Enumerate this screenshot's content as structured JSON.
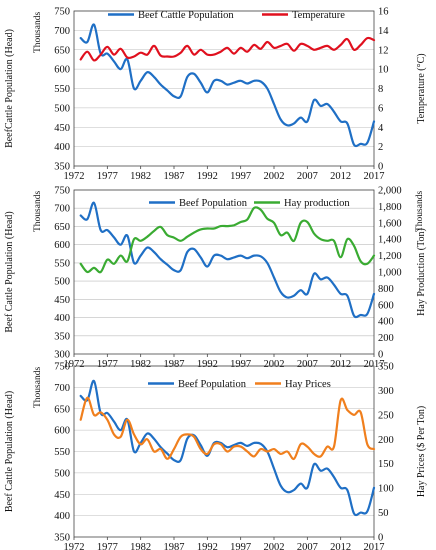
{
  "chart_data": [
    {
      "type": "line",
      "left_unit": "Thousands",
      "ylabel": "BeefCattle Population (Head)",
      "y2label": "Temperature (°C)",
      "xlim": [
        1972,
        2017
      ],
      "xticks": [
        1972,
        1977,
        1982,
        1987,
        1992,
        1997,
        2002,
        2007,
        2012,
        2017
      ],
      "ylim": [
        350,
        750
      ],
      "yticks": [
        350,
        400,
        450,
        500,
        550,
        600,
        650,
        700,
        750
      ],
      "y2lim": [
        0,
        16
      ],
      "y2ticks": [
        0,
        2,
        4,
        6,
        8,
        10,
        12,
        14,
        16
      ],
      "grid": true,
      "legend_position": "top-center",
      "series": [
        {
          "name": "Beef Cattle Population",
          "axis": "left",
          "color": "#1f6fc5",
          "x": [
            1973,
            1974,
            1975,
            1976,
            1977,
            1978,
            1979,
            1980,
            1981,
            1982,
            1983,
            1984,
            1985,
            1986,
            1987,
            1988,
            1989,
            1990,
            1991,
            1992,
            1993,
            1994,
            1995,
            1996,
            1997,
            1998,
            1999,
            2000,
            2001,
            2002,
            2003,
            2004,
            2005,
            2006,
            2007,
            2008,
            2009,
            2010,
            2011,
            2012,
            2013,
            2014,
            2015,
            2016,
            2017
          ],
          "values": [
            680,
            670,
            715,
            640,
            640,
            620,
            600,
            625,
            550,
            570,
            592,
            580,
            560,
            545,
            530,
            530,
            580,
            588,
            565,
            540,
            570,
            570,
            560,
            565,
            570,
            563,
            570,
            568,
            550,
            510,
            470,
            455,
            460,
            475,
            465,
            520,
            505,
            510,
            490,
            465,
            460,
            405,
            407,
            410,
            465
          ]
        },
        {
          "name": "Temperature",
          "axis": "right",
          "color": "#e0101e",
          "x": [
            1973,
            1974,
            1975,
            1976,
            1977,
            1978,
            1979,
            1980,
            1981,
            1982,
            1983,
            1984,
            1985,
            1986,
            1987,
            1988,
            1989,
            1990,
            1991,
            1992,
            1993,
            1994,
            1995,
            1996,
            1997,
            1998,
            1999,
            2000,
            2001,
            2002,
            2003,
            2004,
            2005,
            2006,
            2007,
            2008,
            2009,
            2010,
            2011,
            2012,
            2013,
            2014,
            2015,
            2016,
            2017
          ],
          "values": [
            11.0,
            11.8,
            10.9,
            11.5,
            12.3,
            11.5,
            12.1,
            11.2,
            11.3,
            11.7,
            11.5,
            12.4,
            11.4,
            11.3,
            11.3,
            11.7,
            12.4,
            11.5,
            12.0,
            11.5,
            11.5,
            11.8,
            12.2,
            11.6,
            12.2,
            11.8,
            12.5,
            12.1,
            12.8,
            12.2,
            12.4,
            12.6,
            11.9,
            12.6,
            12.4,
            12.0,
            12.2,
            12.4,
            12.0,
            12.5,
            13.1,
            12.0,
            12.5,
            13.2,
            13.0
          ]
        }
      ]
    },
    {
      "type": "line",
      "left_unit": "Thousands",
      "right_unit": "Thousands",
      "ylabel": "Beef Cattle Population (Head)",
      "y2label": "Hay Production (Ton)",
      "xlim": [
        1972,
        2017
      ],
      "xticks": [
        1972,
        1977,
        1982,
        1987,
        1992,
        1997,
        2002,
        2007,
        2012,
        2017
      ],
      "ylim": [
        300,
        750
      ],
      "yticks": [
        300,
        350,
        400,
        450,
        500,
        550,
        600,
        650,
        700,
        750
      ],
      "y2lim": [
        0,
        2000
      ],
      "y2ticks": [
        0,
        200,
        400,
        600,
        800,
        1000,
        1200,
        1400,
        1600,
        1800,
        2000
      ],
      "y2tick_labels": [
        "0",
        "200",
        "400",
        "600",
        "800",
        "1,000",
        "1,200",
        "1,400",
        "1,600",
        "1,800",
        "2,000"
      ],
      "grid": true,
      "legend_position": "top-center",
      "series": [
        {
          "name": "Beef Population",
          "axis": "left",
          "color": "#1f6fc5",
          "x": [
            1973,
            1974,
            1975,
            1976,
            1977,
            1978,
            1979,
            1980,
            1981,
            1982,
            1983,
            1984,
            1985,
            1986,
            1987,
            1988,
            1989,
            1990,
            1991,
            1992,
            1993,
            1994,
            1995,
            1996,
            1997,
            1998,
            1999,
            2000,
            2001,
            2002,
            2003,
            2004,
            2005,
            2006,
            2007,
            2008,
            2009,
            2010,
            2011,
            2012,
            2013,
            2014,
            2015,
            2016,
            2017
          ],
          "values": [
            680,
            670,
            715,
            640,
            640,
            620,
            600,
            625,
            550,
            570,
            592,
            580,
            560,
            545,
            530,
            530,
            580,
            588,
            565,
            540,
            570,
            570,
            560,
            565,
            570,
            563,
            570,
            568,
            550,
            510,
            470,
            455,
            460,
            475,
            465,
            520,
            505,
            510,
            490,
            465,
            460,
            405,
            407,
            410,
            465
          ]
        },
        {
          "name": "Hay production",
          "axis": "right",
          "color": "#3aab32",
          "x": [
            1973,
            1974,
            1975,
            1976,
            1977,
            1978,
            1979,
            1980,
            1981,
            1982,
            1983,
            1984,
            1985,
            1986,
            1987,
            1988,
            1989,
            1990,
            1991,
            1992,
            1993,
            1994,
            1995,
            1996,
            1997,
            1998,
            1999,
            2000,
            2001,
            2002,
            2003,
            2004,
            2005,
            2006,
            2007,
            2008,
            2009,
            2010,
            2011,
            2012,
            2013,
            2014,
            2015,
            2016,
            2017
          ],
          "values": [
            1100,
            1000,
            1050,
            1000,
            1150,
            1100,
            1200,
            1130,
            1400,
            1380,
            1430,
            1500,
            1550,
            1450,
            1420,
            1380,
            1430,
            1480,
            1520,
            1530,
            1530,
            1560,
            1560,
            1570,
            1610,
            1640,
            1780,
            1760,
            1650,
            1600,
            1450,
            1480,
            1380,
            1600,
            1610,
            1470,
            1400,
            1380,
            1380,
            1180,
            1400,
            1320,
            1130,
            1100,
            1200
          ]
        }
      ]
    },
    {
      "type": "line",
      "left_unit": "Thousands",
      "ylabel": "Beef Cattle Population (Head)",
      "y2label": "Hay Prices ($ Per Ton)",
      "xlim": [
        1972,
        2017
      ],
      "xticks": [
        1972,
        1977,
        1982,
        1987,
        1992,
        1997,
        2002,
        2007,
        2012,
        2017
      ],
      "ylim": [
        350,
        750
      ],
      "yticks": [
        350,
        400,
        450,
        500,
        550,
        600,
        650,
        700,
        750
      ],
      "y2lim": [
        0,
        350
      ],
      "y2ticks": [
        0,
        50,
        100,
        150,
        200,
        250,
        300,
        350
      ],
      "grid": true,
      "legend_position": "top-center",
      "series": [
        {
          "name": "Beef Population",
          "axis": "left",
          "color": "#1f6fc5",
          "x": [
            1973,
            1974,
            1975,
            1976,
            1977,
            1978,
            1979,
            1980,
            1981,
            1982,
            1983,
            1984,
            1985,
            1986,
            1987,
            1988,
            1989,
            1990,
            1991,
            1992,
            1993,
            1994,
            1995,
            1996,
            1997,
            1998,
            1999,
            2000,
            2001,
            2002,
            2003,
            2004,
            2005,
            2006,
            2007,
            2008,
            2009,
            2010,
            2011,
            2012,
            2013,
            2014,
            2015,
            2016,
            2017
          ],
          "values": [
            680,
            670,
            715,
            640,
            640,
            620,
            600,
            625,
            550,
            570,
            592,
            580,
            560,
            545,
            530,
            530,
            580,
            588,
            565,
            540,
            570,
            570,
            560,
            565,
            570,
            563,
            570,
            568,
            550,
            510,
            470,
            455,
            460,
            475,
            465,
            520,
            505,
            510,
            490,
            465,
            460,
            405,
            407,
            410,
            465
          ]
        },
        {
          "name": "Hay Prices",
          "axis": "right",
          "color": "#f07f1d",
          "x": [
            1973,
            1974,
            1975,
            1976,
            1977,
            1978,
            1979,
            1980,
            1981,
            1982,
            1983,
            1984,
            1985,
            1986,
            1987,
            1988,
            1989,
            1990,
            1991,
            1992,
            1993,
            1994,
            1995,
            1996,
            1997,
            1998,
            1999,
            2000,
            2001,
            2002,
            2003,
            2004,
            2005,
            2006,
            2007,
            2008,
            2009,
            2010,
            2011,
            2012,
            2013,
            2014,
            2015,
            2016,
            2017
          ],
          "values": [
            240,
            285,
            250,
            255,
            240,
            210,
            205,
            240,
            210,
            190,
            200,
            175,
            180,
            160,
            180,
            205,
            210,
            205,
            180,
            170,
            190,
            190,
            175,
            185,
            185,
            175,
            165,
            180,
            175,
            180,
            170,
            175,
            160,
            190,
            185,
            170,
            165,
            185,
            185,
            280,
            260,
            250,
            255,
            190,
            180
          ]
        }
      ]
    }
  ]
}
